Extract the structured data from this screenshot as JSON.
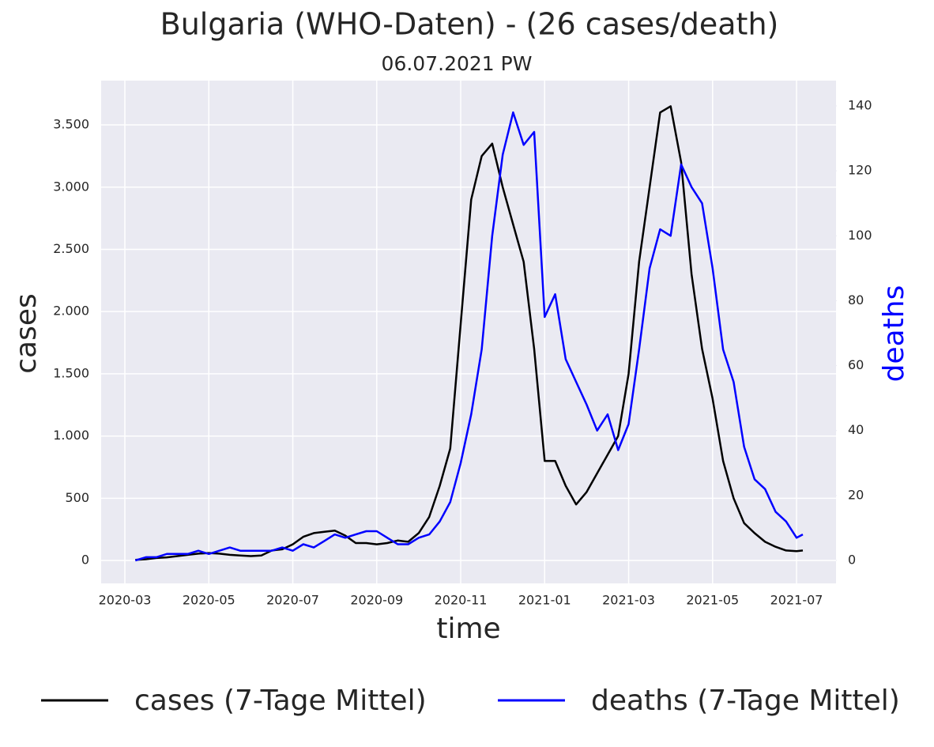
{
  "chart_data": {
    "type": "line",
    "title": "Bulgaria (WHO-Daten) - (26 cases/death)",
    "subtitle": "06.07.2021 PW",
    "x_label": "time",
    "y_label": "cases",
    "y2_label": "deaths",
    "x": [
      3.25,
      3.5,
      3.75,
      4,
      4.25,
      4.5,
      4.75,
      5,
      5.25,
      5.5,
      5.75,
      6,
      6.25,
      6.5,
      6.75,
      7,
      7.25,
      7.5,
      7.75,
      8,
      8.25,
      8.5,
      8.75,
      9,
      9.25,
      9.5,
      9.75,
      10,
      10.25,
      10.5,
      10.75,
      11,
      11.25,
      11.5,
      11.75,
      12,
      12.25,
      12.5,
      12.75,
      13,
      13.25,
      13.5,
      13.75,
      14,
      14.25,
      14.5,
      14.75,
      15,
      15.25,
      15.5,
      15.75,
      16,
      16.25,
      16.5,
      16.75,
      17,
      17.25,
      17.5,
      17.75,
      18,
      18.25,
      18.5,
      18.75,
      19,
      19.15
    ],
    "series": [
      {
        "name": "cases (7-Tage Mittel)",
        "color": "#000000",
        "axis": "y",
        "values": [
          5,
          10,
          20,
          25,
          35,
          45,
          55,
          60,
          55,
          45,
          40,
          35,
          40,
          80,
          90,
          130,
          190,
          220,
          230,
          240,
          200,
          140,
          140,
          130,
          140,
          160,
          150,
          220,
          350,
          600,
          900,
          1900,
          2900,
          3250,
          3350,
          3000,
          2700,
          2400,
          1700,
          800,
          800,
          600,
          450,
          550,
          700,
          850,
          1000,
          1500,
          2400,
          3000,
          3600,
          3650,
          3200,
          2300,
          1700,
          1300,
          800,
          500,
          300,
          220,
          150,
          110,
          80,
          75,
          80
        ]
      },
      {
        "name": "deaths (7-Tage Mittel)",
        "color": "#0000ff",
        "axis": "y2",
        "values": [
          0,
          1,
          1,
          2,
          2,
          2,
          3,
          2,
          3,
          4,
          3,
          3,
          3,
          3,
          4,
          3,
          5,
          4,
          6,
          8,
          7,
          8,
          9,
          9,
          7,
          5,
          5,
          7,
          8,
          12,
          18,
          30,
          45,
          65,
          100,
          125,
          138,
          128,
          132,
          75,
          82,
          62,
          55,
          48,
          40,
          45,
          34,
          42,
          65,
          90,
          102,
          100,
          122,
          115,
          110,
          90,
          65,
          55,
          35,
          25,
          22,
          15,
          12,
          7,
          8
        ]
      }
    ],
    "xlim": [
      2.435,
      19.94
    ],
    "xticks": [
      {
        "value": 3,
        "label": "2020-03"
      },
      {
        "value": 5,
        "label": "2020-05"
      },
      {
        "value": 7,
        "label": "2020-07"
      },
      {
        "value": 9,
        "label": "2020-09"
      },
      {
        "value": 11,
        "label": "2020-11"
      },
      {
        "value": 13,
        "label": "2021-01"
      },
      {
        "value": 15,
        "label": "2021-03"
      },
      {
        "value": 17,
        "label": "2021-05"
      },
      {
        "value": 19,
        "label": "2021-07"
      }
    ],
    "ylim": [
      -184,
      3856
    ],
    "yticks": [
      0,
      500,
      {
        "value": 1000,
        "label": "1.000"
      },
      {
        "value": 1500,
        "label": "1.500"
      },
      {
        "value": 2000,
        "label": "2.000"
      },
      {
        "value": 2500,
        "label": "2.500"
      },
      {
        "value": 3000,
        "label": "3.000"
      },
      {
        "value": 3500,
        "label": "3.500"
      }
    ],
    "y2lim": [
      -7.06,
      147.8
    ],
    "y2ticks": [
      0,
      20,
      40,
      60,
      80,
      100,
      120,
      140
    ],
    "y2_label_color": "#0000ff",
    "grid": true
  }
}
